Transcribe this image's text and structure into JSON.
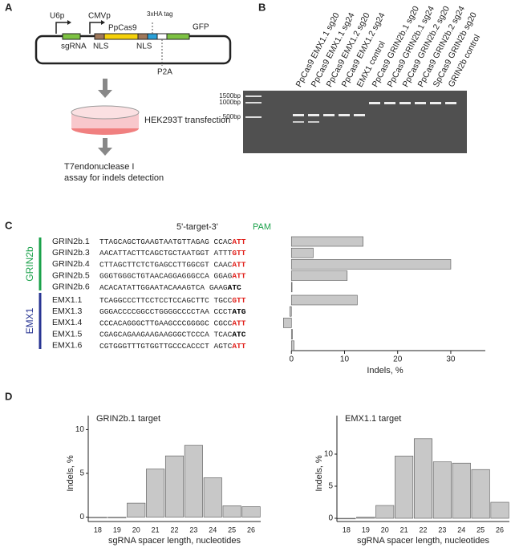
{
  "panels": {
    "letters": [
      "A",
      "B",
      "C",
      "D"
    ],
    "plasmid": {
      "u6p": "U6p",
      "cmvp": "CMVp",
      "ppcas9": "PpCas9",
      "ha": "3xHA tag",
      "sgrna": "sgRNA",
      "nls1": "NLS",
      "nls2": "NLS",
      "gfp": "GFP",
      "p2a": "P2A"
    },
    "steps": {
      "transfection": "HEK293T transfection",
      "t7a": "T7endonuclease I",
      "t7b": "assay for indels detection"
    },
    "gel": {
      "markers": [
        "1500bp",
        "1000bp",
        "500bp"
      ],
      "lanes": [
        "PpCas9 EMX1.1 sg20",
        "PpCas9 EMX1.1 sg24",
        "PpCas9 EMX1.2 sg20",
        "PpCas9 EMX1.2 sg24",
        "EMX1 control",
        "PpCas9 GRIN2b.1 sg20",
        "PpCas9 GRIN2b.1 sg24",
        "PpCas9 GRIN2b.2 sg20",
        "PpCas9 GRIN2b.2 sg24",
        "SpCas9 GRIN2b sg20",
        "GRIN2b control"
      ]
    }
  },
  "chart_data": [
    {
      "type": "hbar",
      "target_header": "5'-target-3'",
      "pam_header": "PAM",
      "groups": [
        "GRIN2b",
        "EMX1"
      ],
      "group_colors": [
        "#1aa14a",
        "#283593"
      ],
      "categories": [
        "GRIN2b.1",
        "GRIN2b.3",
        "GRIN2b.4",
        "GRIN2b.5",
        "GRIN2b.6",
        "EMX1.1",
        "EMX1.3",
        "EMX1.4",
        "EMX1.5",
        "EMX1.6"
      ],
      "sequences": [
        "TTAGCAGCTGAAGTAATGTTAGAG CCAC",
        "AACATTACTTCAGCTGCTAATGGT ATTT",
        "CTTAGCTTCTCTGAGCCTTGGCGT CAAC",
        "GGGTGGGCTGTAACAGGAGGGCCA GGAG",
        "ACACATATTGGAATACAAAGTCA GAAG",
        "TCAGGCCCTTCCTCCTCCAGCTTC TGCC",
        "GGGACCCCGGCCTGGGGCCCCTAA CCCT",
        "CCCACAGGGCTTGAAGCCCGGGGC CGCC",
        "CGAGCAGAAGAAGAAGGGCTCCCA TCAC",
        "CGTGGGTTTGTGGTTGCCCACCCT AGTC"
      ],
      "pams": [
        "ATT",
        "GTT",
        "ATT",
        "ATT",
        "ATC",
        "GTT",
        "ATG",
        "ATT",
        "ATC",
        "ATT"
      ],
      "pam_colors": [
        "#e0201b",
        "#e0201b",
        "#e0201b",
        "#e0201b",
        "#000000",
        "#e0201b",
        "#000000",
        "#e0201b",
        "#000000",
        "#e0201b"
      ],
      "values": [
        13.5,
        4.1,
        30,
        10.5,
        0,
        12.4,
        -0.3,
        -1.5,
        0.2,
        0.5
      ],
      "color": "#c8c8c8",
      "xlim": [
        -1.7,
        36.5
      ],
      "xticks": [
        0,
        10,
        20,
        30
      ],
      "xlabel": "Indels, %"
    },
    {
      "type": "bar",
      "title": "GRIN2b.1 target",
      "categories": [
        "18",
        "19",
        "20",
        "21",
        "22",
        "23",
        "24",
        "25",
        "26"
      ],
      "values": [
        0,
        0,
        1.6,
        5.5,
        7.0,
        8.2,
        4.5,
        1.3,
        1.2
      ],
      "color": "#c8c8c8",
      "ylim": [
        -0.5,
        10.5
      ],
      "yticks": [
        0,
        5,
        10
      ],
      "ylabel": "Indels, %",
      "xlabel": "sgRNA spacer length, nucleotides"
    },
    {
      "type": "bar",
      "title": "EMX1.1 target",
      "categories": [
        "18",
        "19",
        "20",
        "21",
        "22",
        "23",
        "24",
        "25",
        "26"
      ],
      "values": [
        0,
        0.2,
        2.0,
        9.7,
        12.4,
        8.8,
        8.6,
        7.6,
        2.5
      ],
      "color": "#c8c8c8",
      "ylim": [
        -0.5,
        14.5
      ],
      "yticks": [
        0,
        5,
        10
      ],
      "ylabel": "Indels, %",
      "xlabel": "sgRNA spacer length, nucleotides"
    }
  ]
}
